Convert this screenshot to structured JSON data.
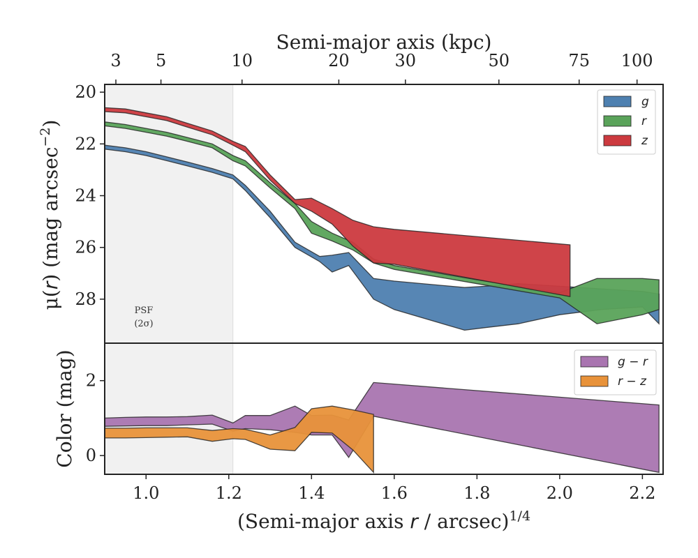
{
  "chart_data": [
    {
      "type": "area",
      "panel": "surface-brightness",
      "top_axis": {
        "label": "Semi-major axis (kpc)",
        "ticks": [
          3,
          5,
          10,
          20,
          30,
          50,
          75,
          100
        ],
        "tick_labels": [
          "3",
          "5",
          "10",
          "20",
          "30",
          "50",
          "75",
          "100"
        ],
        "tick_positions_x": [
          0.927,
          1.036,
          1.232,
          1.466,
          1.627,
          1.853,
          2.047,
          2.187
        ]
      },
      "xlabel": "(Semi-major axis r / arcsec)^1/4",
      "ylabel": "μ(r) (mag arcsec⁻²)",
      "xlim": [
        0.9,
        2.25
      ],
      "ylim": [
        29.7,
        19.7
      ],
      "yticks": [
        20,
        22,
        24,
        26,
        28
      ],
      "yticks_inverted": true,
      "psf_region": {
        "x_max": 1.21,
        "label_line1": "PSF",
        "label_line2": "(2σ)"
      },
      "legend_position": "top-right",
      "series": [
        {
          "name": "g",
          "color": "#4e80b0",
          "x": [
            0.9,
            0.95,
            1.0,
            1.05,
            1.1,
            1.16,
            1.21,
            1.24,
            1.3,
            1.36,
            1.42,
            1.45,
            1.49,
            1.55,
            1.6,
            1.77,
            1.82,
            1.9,
            2.0,
            2.1,
            2.2,
            2.24
          ],
          "y_upper": [
            22.05,
            22.15,
            22.3,
            22.5,
            22.7,
            22.95,
            23.2,
            23.6,
            24.6,
            25.8,
            26.35,
            26.3,
            26.2,
            27.2,
            27.3,
            27.55,
            27.5,
            27.4,
            27.5,
            27.6,
            27.7,
            27.8
          ],
          "y_lower": [
            22.2,
            22.3,
            22.45,
            22.65,
            22.85,
            23.1,
            23.35,
            23.8,
            24.85,
            26.0,
            26.55,
            26.95,
            26.7,
            28.0,
            28.4,
            29.2,
            29.1,
            28.95,
            28.6,
            28.4,
            28.3,
            28.95
          ]
        },
        {
          "name": "r",
          "color": "#5aa35a",
          "x": [
            0.9,
            0.95,
            1.0,
            1.05,
            1.1,
            1.16,
            1.21,
            1.24,
            1.3,
            1.36,
            1.4,
            1.45,
            1.5,
            1.55,
            1.6,
            1.8,
            2.0,
            2.09,
            2.2,
            2.24
          ],
          "y_upper": [
            21.15,
            21.25,
            21.4,
            21.55,
            21.75,
            22.0,
            22.45,
            22.65,
            23.5,
            24.3,
            25.0,
            25.45,
            25.8,
            26.45,
            26.7,
            27.25,
            27.75,
            27.2,
            27.2,
            27.25
          ],
          "y_lower": [
            21.3,
            21.4,
            21.55,
            21.7,
            21.9,
            22.15,
            22.65,
            22.85,
            23.7,
            24.5,
            25.45,
            25.75,
            26.1,
            26.6,
            26.85,
            27.4,
            27.95,
            28.95,
            28.6,
            28.4
          ]
        },
        {
          "name": "z",
          "color": "#cc3a3f",
          "x": [
            0.9,
            0.95,
            1.0,
            1.05,
            1.1,
            1.16,
            1.21,
            1.24,
            1.3,
            1.36,
            1.4,
            1.45,
            1.5,
            1.55,
            1.6,
            2.025
          ],
          "y_upper": [
            20.6,
            20.65,
            20.8,
            20.95,
            21.2,
            21.5,
            21.9,
            22.1,
            23.2,
            24.15,
            24.1,
            24.5,
            24.95,
            25.2,
            25.3,
            25.9
          ],
          "y_lower": [
            20.75,
            20.8,
            20.95,
            21.1,
            21.35,
            21.65,
            22.05,
            22.3,
            23.4,
            24.3,
            24.6,
            25.1,
            25.95,
            26.6,
            26.65,
            27.9
          ]
        }
      ]
    },
    {
      "type": "area",
      "panel": "color",
      "xlabel": "(Semi-major axis r / arcsec)^1/4",
      "ylabel": "Color (mag)",
      "xlim": [
        0.9,
        2.25
      ],
      "ylim": [
        -0.5,
        3.0
      ],
      "yticks": [
        0,
        2
      ],
      "xticks": [
        1.0,
        1.2,
        1.4,
        1.6,
        1.8,
        2.0,
        2.2
      ],
      "xtick_labels": [
        "1.0",
        "1.2",
        "1.4",
        "1.6",
        "1.8",
        "2.0",
        "2.2"
      ],
      "psf_region": {
        "x_max": 1.21
      },
      "legend_position": "top-right",
      "series": [
        {
          "name": "g − r",
          "color": "#a975b0",
          "x": [
            0.9,
            0.95,
            1.0,
            1.05,
            1.1,
            1.16,
            1.21,
            1.24,
            1.3,
            1.36,
            1.4,
            1.45,
            1.49,
            1.55,
            2.24
          ],
          "y_upper": [
            1.0,
            1.02,
            1.03,
            1.03,
            1.04,
            1.08,
            0.87,
            1.07,
            1.07,
            1.32,
            1.07,
            1.08,
            0.95,
            1.95,
            1.35
          ],
          "y_lower": [
            0.78,
            0.79,
            0.8,
            0.8,
            0.82,
            0.84,
            0.65,
            0.72,
            0.69,
            0.62,
            0.55,
            0.55,
            -0.05,
            1.05,
            -0.45
          ]
        },
        {
          "name": "r − z",
          "color": "#e8923a",
          "x": [
            0.9,
            0.95,
            1.0,
            1.05,
            1.1,
            1.16,
            1.21,
            1.24,
            1.3,
            1.36,
            1.4,
            1.45,
            1.5,
            1.55
          ],
          "y_upper": [
            0.73,
            0.73,
            0.74,
            0.74,
            0.74,
            0.67,
            0.72,
            0.7,
            0.55,
            0.75,
            1.25,
            1.32,
            1.22,
            1.1
          ],
          "y_lower": [
            0.47,
            0.47,
            0.48,
            0.49,
            0.5,
            0.38,
            0.45,
            0.43,
            0.17,
            0.13,
            0.62,
            0.6,
            0.15,
            -0.45
          ]
        }
      ]
    }
  ]
}
